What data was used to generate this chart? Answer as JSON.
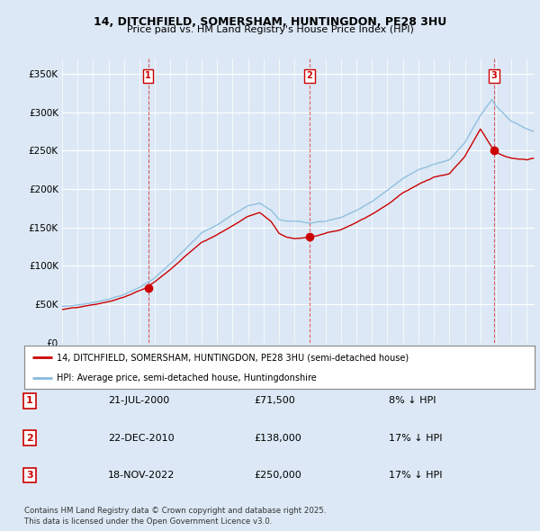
{
  "title": "14, DITCHFIELD, SOMERSHAM, HUNTINGDON, PE28 3HU",
  "subtitle": "Price paid vs. HM Land Registry's House Price Index (HPI)",
  "background_color": "#dce8f5",
  "plot_bg_color": "#dce8f5",
  "ylim": [
    0,
    370000
  ],
  "yticks": [
    0,
    50000,
    100000,
    150000,
    200000,
    250000,
    300000,
    350000
  ],
  "xlim_start": 1995.0,
  "xlim_end": 2025.5,
  "sale_dates": [
    2000.55,
    2010.97,
    2022.88
  ],
  "sale_prices": [
    71500,
    138000,
    250000
  ],
  "sale_labels": [
    "1",
    "2",
    "3"
  ],
  "sale_date_strs": [
    "21-JUL-2000",
    "22-DEC-2010",
    "18-NOV-2022"
  ],
  "sale_price_strs": [
    "£71,500",
    "£138,000",
    "£250,000"
  ],
  "sale_hpi_strs": [
    "8% ↓ HPI",
    "17% ↓ HPI",
    "17% ↓ HPI"
  ],
  "legend_line1": "14, DITCHFIELD, SOMERSHAM, HUNTINGDON, PE28 3HU (semi-detached house)",
  "legend_line2": "HPI: Average price, semi-detached house, Huntingdonshire",
  "footer": "Contains HM Land Registry data © Crown copyright and database right 2025.\nThis data is licensed under the Open Government Licence v3.0.",
  "line_color_red": "#cc0000",
  "line_color_blue": "#88bbdd",
  "marker_color_red": "#cc0000",
  "vline_color": "#cc0000",
  "grid_color": "#ffffff",
  "hpi_waypoints_t": [
    1995.0,
    1996.0,
    1997.0,
    1998.0,
    1999.0,
    2000.0,
    2001.0,
    2002.0,
    2003.0,
    2004.0,
    2005.0,
    2006.0,
    2007.0,
    2007.75,
    2008.5,
    2009.0,
    2009.5,
    2010.0,
    2010.5,
    2011.0,
    2011.5,
    2012.0,
    2013.0,
    2014.0,
    2015.0,
    2016.0,
    2017.0,
    2018.0,
    2019.0,
    2020.0,
    2021.0,
    2022.0,
    2022.75,
    2023.0,
    2023.5,
    2024.0,
    2025.0,
    2025.4
  ],
  "hpi_waypoints_v": [
    47000,
    49000,
    52000,
    57000,
    63000,
    72000,
    85000,
    103000,
    122000,
    142000,
    152000,
    165000,
    178000,
    182000,
    172000,
    160000,
    158000,
    158000,
    157000,
    155000,
    157000,
    158000,
    163000,
    172000,
    183000,
    198000,
    213000,
    224000,
    232000,
    237000,
    260000,
    295000,
    316000,
    308000,
    298000,
    288000,
    278000,
    275000
  ],
  "prop_waypoints_t": [
    1995.0,
    1996.0,
    1997.0,
    1998.0,
    1999.0,
    2000.0,
    2000.55,
    2001.0,
    2002.0,
    2003.0,
    2004.0,
    2005.0,
    2006.0,
    2007.0,
    2007.75,
    2008.5,
    2009.0,
    2009.5,
    2010.0,
    2010.97,
    2011.5,
    2012.0,
    2013.0,
    2014.0,
    2015.0,
    2016.0,
    2017.0,
    2018.0,
    2019.0,
    2020.0,
    2021.0,
    2022.0,
    2022.88,
    2023.0,
    2023.5,
    2024.0,
    2025.0,
    2025.4
  ],
  "prop_waypoints_v": [
    43000,
    45000,
    48000,
    52000,
    58000,
    66000,
    71500,
    78000,
    94000,
    112000,
    130000,
    140000,
    152000,
    165000,
    170000,
    158000,
    143000,
    138000,
    136000,
    138000,
    140000,
    143000,
    148000,
    158000,
    169000,
    182000,
    197000,
    208000,
    217000,
    221000,
    243000,
    278000,
    250000,
    248000,
    243000,
    240000,
    238000,
    240000
  ]
}
